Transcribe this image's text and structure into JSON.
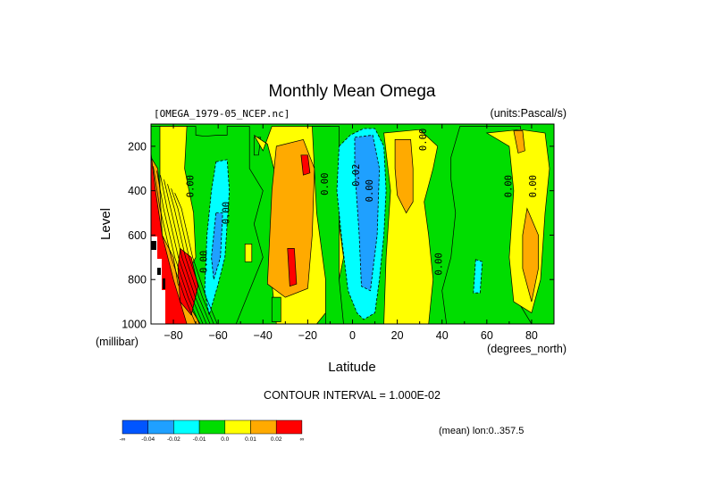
{
  "chart_data": {
    "type": "heatmap",
    "title": "Monthly Mean Omega",
    "subtitle_left": "[OMEGA_1979-05_NCEP.nc]",
    "subtitle_right": "(units:Pascal/s)",
    "xlabel": "Latitude",
    "xunit": "(degrees_north)",
    "ylabel": "Level",
    "yunit": "(millibar)",
    "xlim": [
      -90,
      90
    ],
    "ylim": [
      1000,
      100
    ],
    "xticks": [
      -80,
      -60,
      -40,
      -20,
      0,
      20,
      40,
      60,
      80
    ],
    "yticks": [
      200,
      400,
      600,
      800,
      1000
    ],
    "contour_interval_text": "CONTOUR INTERVAL = 1.000E-02",
    "footer_text": "(mean) lon:0..357.5",
    "contour_labels": [
      {
        "text": "0.00",
        "lat": -71,
        "p": 380
      },
      {
        "text": "0.00",
        "lat": -55,
        "p": 500
      },
      {
        "text": "0.00",
        "lat": -65,
        "p": 720
      },
      {
        "text": "0.00",
        "lat": -11,
        "p": 370
      },
      {
        "text": "0.02",
        "lat": 3,
        "p": 330
      },
      {
        "text": "0.00",
        "lat": 9,
        "p": 400
      },
      {
        "text": "0.00",
        "lat": 33,
        "p": 170
      },
      {
        "text": "0.00",
        "lat": 40,
        "p": 730
      },
      {
        "text": "0.00",
        "lat": 71,
        "p": 380
      },
      {
        "text": "0.00",
        "lat": 82,
        "p": 380
      }
    ],
    "colorbar": {
      "colors": [
        "#0055ff",
        "#1fa0ff",
        "#00ffff",
        "#00dd00",
        "#ffff00",
        "#ffaa00",
        "#ff0000"
      ],
      "labels": [
        "-∞",
        "-0.04",
        "-0.02",
        "-0.01",
        "0.0",
        "0.01",
        "0.02",
        "∞"
      ]
    },
    "regions": [
      {
        "level": 3,
        "path": [
          [
            -90,
            110
          ],
          [
            -70,
            110
          ],
          [
            -70,
            150
          ],
          [
            -66,
            155
          ],
          [
            -60,
            150
          ],
          [
            -56,
            150
          ],
          [
            -56,
            110
          ],
          [
            -46,
            110
          ],
          [
            -46,
            300
          ],
          [
            -40,
            400
          ],
          [
            -44,
            550
          ],
          [
            -40,
            700
          ],
          [
            -46,
            850
          ],
          [
            -52,
            1000
          ],
          [
            -90,
            1000
          ]
        ]
      },
      {
        "level": 4,
        "path": [
          [
            -86,
            110
          ],
          [
            -74,
            110
          ],
          [
            -75,
            300
          ],
          [
            -71,
            500
          ],
          [
            -70,
            700
          ],
          [
            -78,
            850
          ],
          [
            -86,
            700
          ]
        ]
      },
      {
        "level": 5,
        "path": [
          [
            -90,
            250
          ],
          [
            -87,
            300
          ],
          [
            -86,
            400
          ],
          [
            -85,
            600
          ],
          [
            -80,
            700
          ],
          [
            -78,
            820
          ],
          [
            -74,
            900
          ],
          [
            -68,
            1000
          ],
          [
            -90,
            1000
          ]
        ]
      },
      {
        "level": 6,
        "path": [
          [
            -90,
            230
          ],
          [
            -88,
            400
          ],
          [
            -85,
            600
          ],
          [
            -80,
            800
          ],
          [
            -74,
            1000
          ],
          [
            -90,
            1000
          ]
        ]
      },
      {
        "level": 6,
        "path": [
          [
            -77,
            660
          ],
          [
            -72,
            700
          ],
          [
            -69,
            830
          ],
          [
            -72,
            960
          ],
          [
            -77,
            900
          ],
          [
            -78,
            750
          ]
        ]
      },
      {
        "level": 2,
        "path": [
          [
            -61,
            270
          ],
          [
            -56,
            260
          ],
          [
            -55,
            400
          ],
          [
            -57,
            700
          ],
          [
            -60,
            820
          ],
          [
            -64,
            960
          ],
          [
            -66,
            850
          ],
          [
            -65,
            600
          ],
          [
            -63,
            400
          ]
        ]
      },
      {
        "level": 1,
        "path": [
          [
            -61,
            500
          ],
          [
            -58,
            500
          ],
          [
            -59,
            700
          ],
          [
            -62,
            800
          ],
          [
            -63,
            700
          ]
        ]
      },
      {
        "level": 3,
        "path": [
          [
            -44,
            160
          ],
          [
            -41,
            160
          ],
          [
            -42,
            240
          ],
          [
            -44,
            240
          ]
        ]
      },
      {
        "level": 4,
        "path": [
          [
            -44,
            150
          ],
          [
            -38,
            190
          ],
          [
            -32,
            420
          ],
          [
            -34,
            620
          ],
          [
            -36,
            820
          ],
          [
            -34,
            1000
          ],
          [
            -16,
            1000
          ],
          [
            -8,
            900
          ],
          [
            -4,
            700
          ],
          [
            -8,
            400
          ],
          [
            -6,
            250
          ],
          [
            -10,
            110
          ],
          [
            -36,
            110
          ],
          [
            -40,
            220
          ]
        ]
      },
      {
        "level": 5,
        "path": [
          [
            -34,
            200
          ],
          [
            -22,
            170
          ],
          [
            -17,
            300
          ],
          [
            -18,
            600
          ],
          [
            -20,
            840
          ],
          [
            -30,
            880
          ],
          [
            -38,
            820
          ],
          [
            -36,
            400
          ]
        ]
      },
      {
        "level": 6,
        "path": [
          [
            -23,
            240
          ],
          [
            -20,
            240
          ],
          [
            -19,
            320
          ],
          [
            -22,
            330
          ]
        ]
      },
      {
        "level": 6,
        "path": [
          [
            -29,
            660
          ],
          [
            -26,
            660
          ],
          [
            -25,
            820
          ],
          [
            -28,
            830
          ]
        ]
      },
      {
        "level": 3,
        "path": [
          [
            -18,
            110
          ],
          [
            -16,
            500
          ],
          [
            -12,
            800
          ],
          [
            -12,
            1000
          ],
          [
            -4,
            1000
          ],
          [
            -6,
            800
          ],
          [
            -6,
            110
          ]
        ]
      },
      {
        "level": 2,
        "path": [
          [
            -6,
            200
          ],
          [
            -1,
            150
          ],
          [
            5,
            120
          ],
          [
            10,
            120
          ],
          [
            14,
            200
          ],
          [
            15,
            400
          ],
          [
            14,
            600
          ],
          [
            12,
            800
          ],
          [
            10,
            950
          ],
          [
            5,
            980
          ],
          [
            2,
            950
          ],
          [
            -2,
            850
          ],
          [
            -5,
            600
          ],
          [
            -7,
            400
          ]
        ]
      },
      {
        "level": 1,
        "path": [
          [
            1,
            160
          ],
          [
            9,
            150
          ],
          [
            12,
            300
          ],
          [
            11,
            600
          ],
          [
            8,
            850
          ],
          [
            4,
            830
          ],
          [
            3,
            600
          ],
          [
            1,
            300
          ]
        ]
      },
      {
        "level": 4,
        "path": [
          [
            14,
            140
          ],
          [
            30,
            125
          ],
          [
            38,
            200
          ],
          [
            36,
            300
          ],
          [
            32,
            450
          ],
          [
            34,
            600
          ],
          [
            36,
            800
          ],
          [
            34,
            1000
          ],
          [
            14,
            1000
          ],
          [
            15,
            700
          ],
          [
            17,
            400
          ]
        ]
      },
      {
        "level": 5,
        "path": [
          [
            19,
            170
          ],
          [
            26,
            170
          ],
          [
            27,
            300
          ],
          [
            27,
            450
          ],
          [
            24,
            500
          ],
          [
            20,
            420
          ],
          [
            19,
            300
          ]
        ]
      },
      {
        "level": 3,
        "path": [
          [
            48,
            110
          ],
          [
            75,
            110
          ],
          [
            76,
            200
          ],
          [
            76,
            300
          ],
          [
            74,
            500
          ],
          [
            74,
            900
          ],
          [
            80,
            1000
          ],
          [
            42,
            1000
          ],
          [
            40,
            850
          ],
          [
            44,
            700
          ],
          [
            46,
            500
          ],
          [
            44,
            350
          ],
          [
            44,
            250
          ]
        ]
      },
      {
        "level": 4,
        "path": [
          [
            60,
            140
          ],
          [
            75,
            125
          ],
          [
            86,
            140
          ],
          [
            88,
            300
          ],
          [
            86,
            500
          ],
          [
            84,
            800
          ],
          [
            80,
            950
          ],
          [
            72,
            900
          ],
          [
            70,
            700
          ],
          [
            72,
            400
          ],
          [
            70,
            200
          ]
        ]
      },
      {
        "level": 5,
        "path": [
          [
            72,
            130
          ],
          [
            76,
            130
          ],
          [
            77,
            220
          ],
          [
            74,
            230
          ]
        ]
      },
      {
        "level": 5,
        "path": [
          [
            78,
            480
          ],
          [
            83,
            600
          ],
          [
            83,
            750
          ],
          [
            80,
            900
          ],
          [
            76,
            750
          ],
          [
            76,
            600
          ]
        ]
      },
      {
        "level": 2,
        "path": [
          [
            55,
            710
          ],
          [
            58,
            720
          ],
          [
            57,
            860
          ],
          [
            54,
            860
          ]
        ]
      },
      {
        "level": 3,
        "path": [
          [
            -36,
            880
          ],
          [
            -32,
            880
          ],
          [
            -32,
            990
          ],
          [
            -36,
            990
          ]
        ]
      },
      {
        "level": 4,
        "path": [
          [
            -48,
            640
          ],
          [
            -45,
            640
          ],
          [
            -45,
            720
          ],
          [
            -48,
            720
          ]
        ]
      }
    ]
  }
}
